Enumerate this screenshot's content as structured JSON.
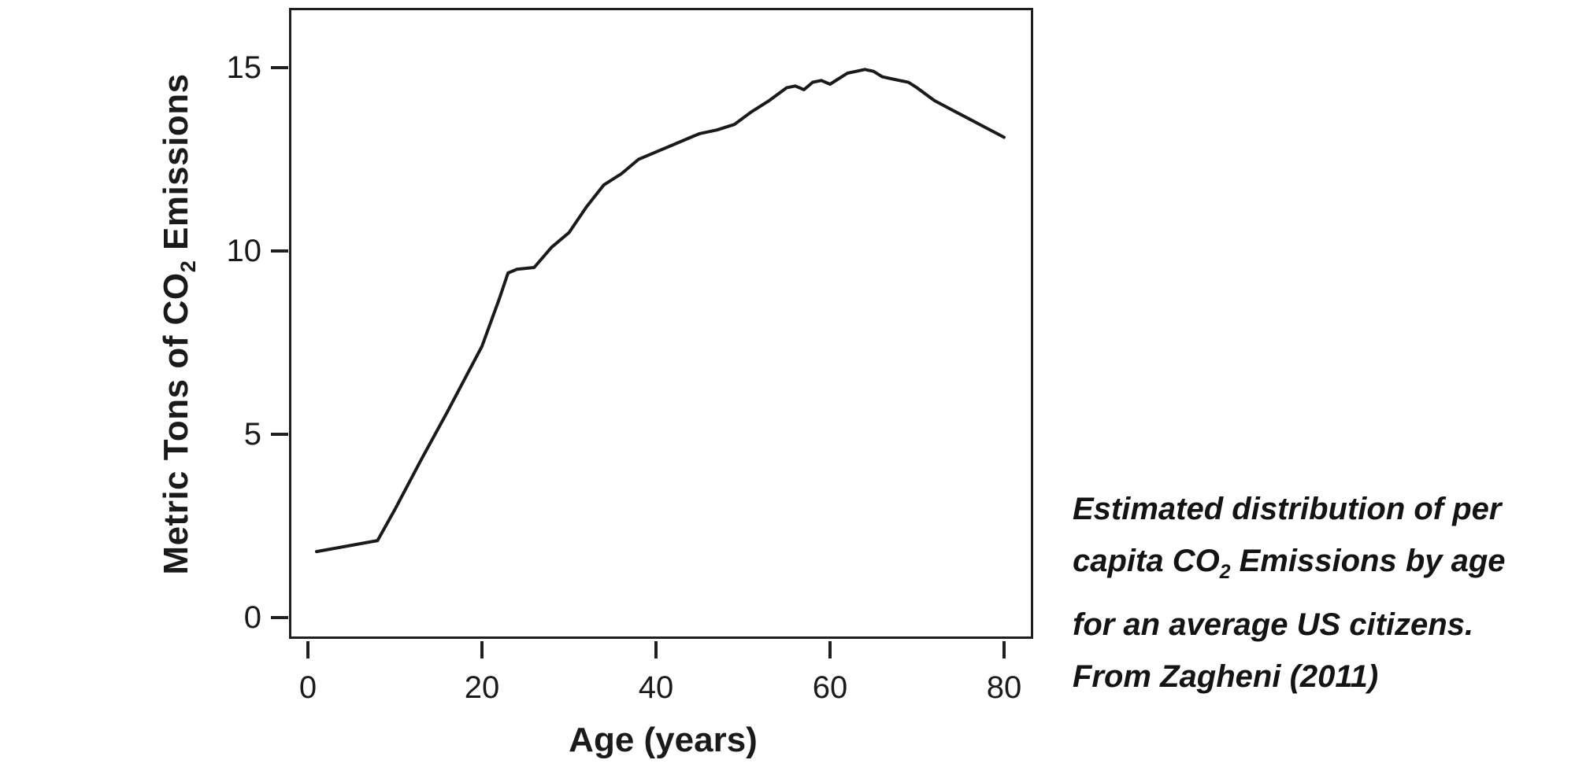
{
  "figure": {
    "y_axis": {
      "title_pre": "Metric Tons of CO",
      "title_sub": "2",
      "title_post": " Emissions",
      "tick_labels": [
        "15",
        "10",
        "5",
        "0"
      ]
    },
    "x_axis": {
      "title": "Age (years)",
      "tick_labels": [
        "0",
        "20",
        "40",
        "60",
        "80"
      ]
    }
  },
  "caption": {
    "line1": "Estimated distribution of per",
    "line2_pre": "capita CO",
    "line2_sub": "2",
    "line2_post": " Emissions by age",
    "line3": "for an average US citizens.",
    "line4": "From Zagheni (2011)"
  },
  "chart_data": {
    "type": "line",
    "title": "",
    "xlabel": "Age (years)",
    "ylabel": "Metric Tons of CO₂ Emissions",
    "xlim": [
      -2.2,
      83.3
    ],
    "ylim": [
      -0.8,
      16.6
    ],
    "xticks": [
      0,
      20,
      40,
      60,
      80
    ],
    "yticks": [
      0,
      5,
      10,
      15
    ],
    "grid": false,
    "legend": "none",
    "line_color": "#1a1a1a",
    "line_width": 4,
    "annotation": "Estimated distribution of per capita CO₂ Emissions by age for an average US citizens. From Zagheni (2011)",
    "series": [
      {
        "name": "Per capita CO₂ emissions (metric tons)",
        "x": [
          1,
          8,
          10,
          13,
          16,
          18,
          20,
          22,
          23,
          24,
          26,
          28,
          30,
          32,
          34,
          36,
          38,
          40,
          42,
          44,
          45,
          47,
          49,
          51,
          53,
          55,
          56,
          57,
          58,
          59,
          60,
          61,
          62,
          63,
          64,
          65,
          66,
          67,
          68,
          69,
          70,
          72,
          74,
          76,
          78,
          80
        ],
        "y": [
          1.8,
          2.1,
          2.95,
          4.3,
          5.6,
          6.5,
          7.4,
          8.7,
          9.4,
          9.5,
          9.55,
          10.1,
          10.5,
          11.2,
          11.8,
          12.1,
          12.5,
          12.7,
          12.9,
          13.1,
          13.2,
          13.3,
          13.45,
          13.8,
          14.1,
          14.45,
          14.5,
          14.4,
          14.6,
          14.65,
          14.55,
          14.7,
          14.85,
          14.9,
          14.95,
          14.9,
          14.75,
          14.7,
          14.65,
          14.6,
          14.45,
          14.1,
          13.85,
          13.6,
          13.35,
          13.1
        ]
      }
    ]
  }
}
